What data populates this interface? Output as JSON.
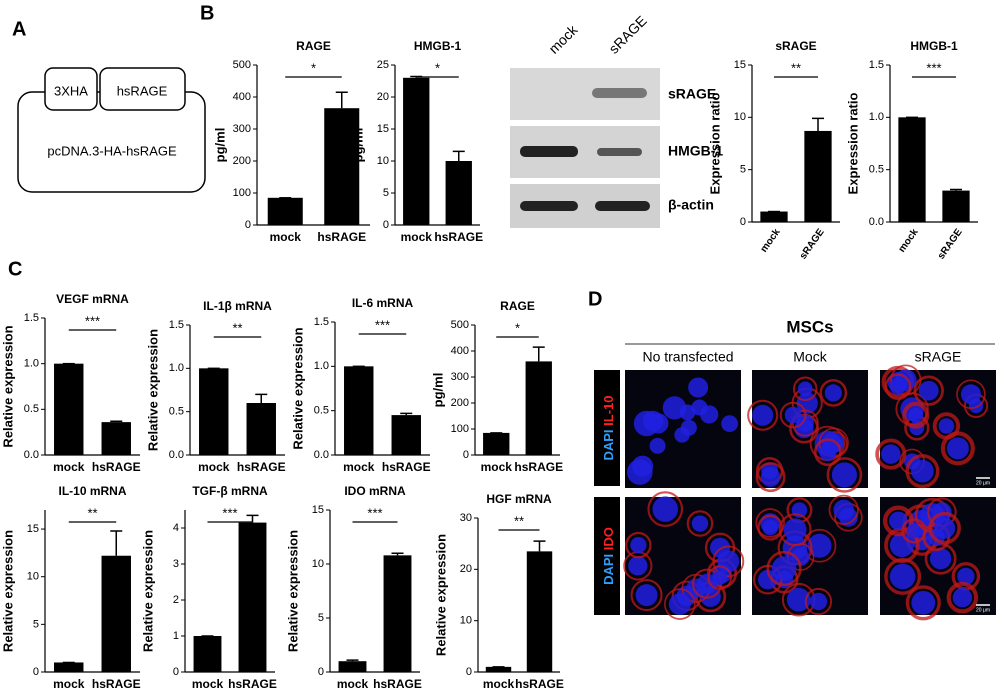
{
  "panel_labels": [
    "A",
    "B",
    "C",
    "D"
  ],
  "plasmid": {
    "tag": "3XHA",
    "insert": "hsRAGE",
    "vector": "pcDNA.3-HA-hsRAGE"
  },
  "blot": {
    "lanes": [
      "mock",
      "sRAGE"
    ],
    "bands": [
      "sRAGE",
      "HMGB-1",
      "β-actin"
    ]
  },
  "microscopy": {
    "title": "MSCs",
    "columns": [
      "No transfected",
      "Mock",
      "sRAGE"
    ],
    "rows": [
      [
        "DAPI",
        "IL-10"
      ],
      [
        "DAPI",
        "IDO"
      ]
    ],
    "scale_bar": "20 μm"
  },
  "chart_data": [
    {
      "type": "bar",
      "title": "RAGE",
      "y_label": "pg/ml",
      "categories": [
        "mock",
        "hsRAGE"
      ],
      "values": [
        85,
        365
      ],
      "errors": [
        0,
        50
      ],
      "ylim": [
        0,
        500
      ],
      "yticks": [
        0,
        100,
        200,
        300,
        400,
        500
      ],
      "significance": "*",
      "color": "#000000"
    },
    {
      "type": "bar",
      "title": "HMGB-1",
      "y_label": "pg/ml",
      "categories": [
        "mock",
        "hsRAGE"
      ],
      "values": [
        23,
        10
      ],
      "errors": [
        0.2,
        1.5
      ],
      "ylim": [
        0,
        25
      ],
      "yticks": [
        0,
        5,
        10,
        15,
        20,
        25
      ],
      "significance": "*",
      "color": "#000000"
    },
    {
      "type": "bar",
      "title": "sRAGE",
      "y_label": "Expression ratio",
      "categories": [
        "mock",
        "sRAGE"
      ],
      "values": [
        1,
        8.7
      ],
      "errors": [
        0,
        1.2
      ],
      "ylim": [
        0,
        15
      ],
      "yticks": [
        0,
        5,
        10,
        15
      ],
      "significance": "**",
      "color": "#000000"
    },
    {
      "type": "bar",
      "title": "HMGB-1",
      "y_label": "Expression ratio",
      "categories": [
        "mock",
        "sRAGE"
      ],
      "values": [
        1,
        0.3
      ],
      "errors": [
        0,
        0.01
      ],
      "ylim": [
        0,
        1.5
      ],
      "yticks": [
        {
          "value": 0,
          "label": "0.0"
        },
        0.5,
        {
          "value": 1,
          "label": "1.0"
        },
        1.5
      ],
      "significance": "***",
      "color": "#000000"
    },
    {
      "type": "bar",
      "title": "VEGF mRNA",
      "y_label": "Relative expression",
      "categories": [
        "mock",
        "hsRAGE"
      ],
      "values": [
        1,
        0.36
      ],
      "errors": [
        0,
        0.01
      ],
      "ylim": [
        0,
        1.5
      ],
      "yticks": [
        {
          "value": 0,
          "label": "0.0"
        },
        0.5,
        {
          "value": 1,
          "label": "1.0"
        },
        1.5
      ],
      "significance": "***",
      "color": "#000000"
    },
    {
      "type": "bar",
      "title": "IL-1β mRNA",
      "y_label": "Relative expression",
      "categories": [
        "mock",
        "hsRAGE"
      ],
      "values": [
        1,
        0.6
      ],
      "errors": [
        0,
        0.1
      ],
      "ylim": [
        0,
        1.5
      ],
      "yticks": [
        {
          "value": 0,
          "label": "0.0"
        },
        0.5,
        {
          "value": 1,
          "label": "1.0"
        },
        1.5
      ],
      "significance": "**",
      "color": "#000000"
    },
    {
      "type": "bar",
      "title": "IL-6 mRNA",
      "y_label": "Relative expression",
      "categories": [
        "mock",
        "hsRAGE"
      ],
      "values": [
        1,
        0.45
      ],
      "errors": [
        0,
        0.02
      ],
      "ylim": [
        0,
        1.5
      ],
      "yticks": [
        {
          "value": 0,
          "label": "0.0"
        },
        0.5,
        {
          "value": 1,
          "label": "1.0"
        },
        1.5
      ],
      "significance": "***",
      "color": "#000000"
    },
    {
      "type": "bar",
      "title": "RAGE",
      "y_label": "pg/ml",
      "categories": [
        "mock",
        "hsRAGE"
      ],
      "values": [
        85,
        360
      ],
      "errors": [
        0,
        55
      ],
      "ylim": [
        0,
        500
      ],
      "yticks": [
        0,
        100,
        200,
        300,
        400,
        500
      ],
      "significance": "*",
      "color": "#000000"
    },
    {
      "type": "bar",
      "title": "IL-10 mRNA",
      "y_label": "Relative expression",
      "categories": [
        "mock",
        "hsRAGE"
      ],
      "values": [
        1,
        12.2
      ],
      "errors": [
        0,
        2.6
      ],
      "ylim": [
        0,
        17
      ],
      "yticks": [
        0,
        5,
        10,
        15
      ],
      "significance": "**",
      "color": "#000000"
    },
    {
      "type": "bar",
      "title": "TGF-β mRNA",
      "y_label": "Relative expression",
      "categories": [
        "mock",
        "hsRAGE"
      ],
      "values": [
        1,
        4.15
      ],
      "errors": [
        0,
        0.2
      ],
      "ylim": [
        0,
        4.5
      ],
      "yticks": [
        0,
        1,
        2,
        3,
        4
      ],
      "significance": "***",
      "color": "#000000"
    },
    {
      "type": "bar",
      "title": "IDO mRNA",
      "y_label": "Relative expression",
      "categories": [
        "mock",
        "hsRAGE"
      ],
      "values": [
        1,
        10.8
      ],
      "errors": [
        0.1,
        0.2
      ],
      "ylim": [
        0,
        15
      ],
      "yticks": [
        0,
        5,
        10,
        15
      ],
      "significance": "***",
      "color": "#000000"
    },
    {
      "type": "bar",
      "title": "HGF mRNA",
      "y_label": "Relative expression",
      "categories": [
        "mock",
        "hsRAGE"
      ],
      "values": [
        1,
        23.5
      ],
      "errors": [
        0,
        2
      ],
      "ylim": [
        0,
        30
      ],
      "yticks": [
        0,
        10,
        20,
        30
      ],
      "significance": "**",
      "color": "#000000"
    }
  ]
}
